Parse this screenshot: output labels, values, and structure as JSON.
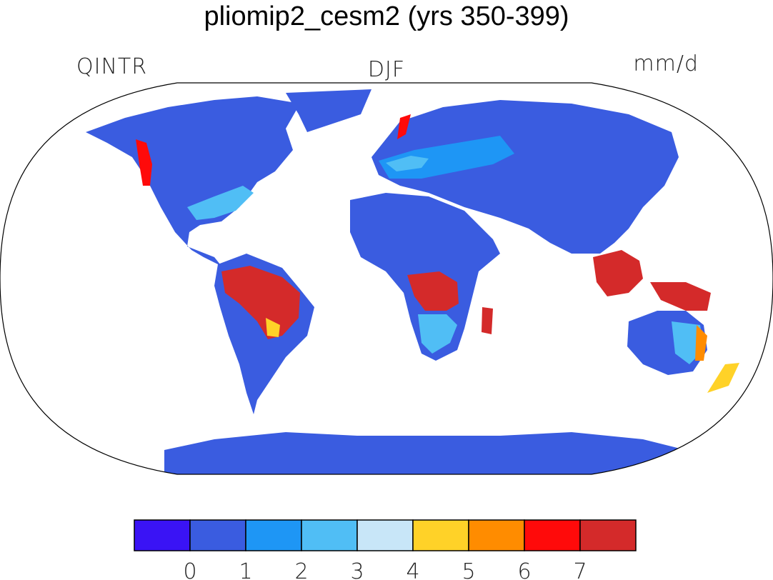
{
  "title": "pliomip2_cesm2 (yrs 350-399)",
  "left_label": "QINTR",
  "center_label": "DJF",
  "right_label": "mm/d",
  "colorbar": {
    "ticks": [
      "0",
      "1",
      "2",
      "3",
      "4",
      "5",
      "6",
      "7"
    ],
    "colors": [
      "#3a13f5",
      "#3a5ce0",
      "#1e96f5",
      "#50bef5",
      "#c8e6f8",
      "#ffd228",
      "#ff8c00",
      "#ff0a0a",
      "#d42a2a"
    ]
  },
  "map": {
    "projection": "robinson",
    "colors": {
      "land_low": "#3a5ce0",
      "land_mid": "#1e96f5",
      "land_light": "#50bef5",
      "yellow": "#ffd228",
      "orange": "#ff8c00",
      "red": "#ff0a0a",
      "dark_red": "#d42a2a"
    }
  }
}
